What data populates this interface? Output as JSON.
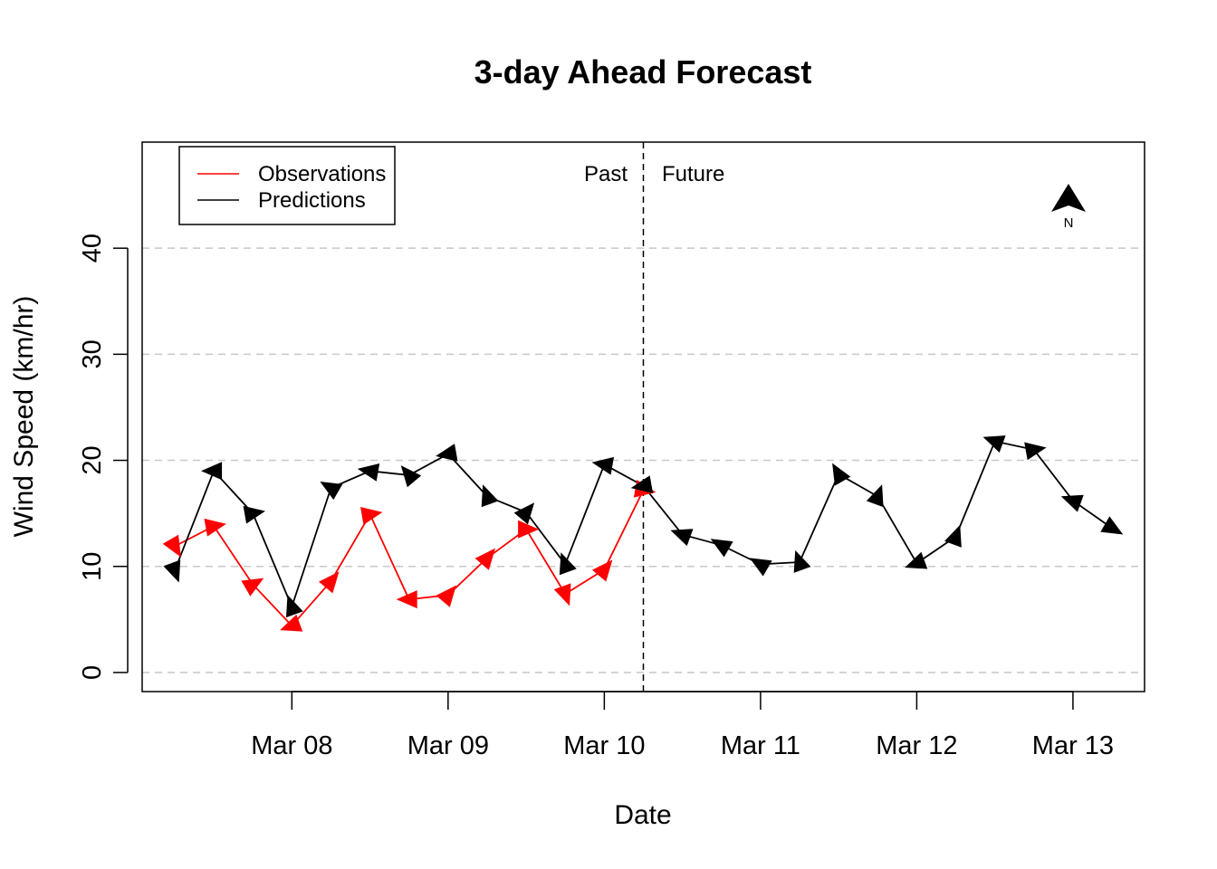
{
  "chart_data": {
    "type": "line",
    "title": "3-day Ahead Forecast",
    "xlabel": "Date",
    "ylabel": "Wind Speed (km/hr)",
    "x_ticks": [
      "Mar 08",
      "Mar 09",
      "Mar 10",
      "Mar 11",
      "Mar 12",
      "Mar 13"
    ],
    "y_ticks": [
      "0",
      "10",
      "20",
      "30",
      "40"
    ],
    "ylim": [
      -1.8,
      50
    ],
    "xlim": [
      "2024-03-07 01:00",
      "2024-03-13 11:00"
    ],
    "grid": "horizontal dashed",
    "legend": {
      "position": "top-left",
      "entries": [
        {
          "label": "Observations",
          "color": "#ff0000"
        },
        {
          "label": "Predictions",
          "color": "#000000"
        }
      ]
    },
    "divider": {
      "x": "2024-03-10 06:00",
      "left_label": "Past",
      "right_label": "Future"
    },
    "north_arrow": "N",
    "series": [
      {
        "name": "Observations",
        "color": "#ff0000",
        "points": [
          {
            "t": "2024-03-07 06:00",
            "y": 11.9,
            "dir": 150
          },
          {
            "t": "2024-03-07 12:00",
            "y": 13.8,
            "dir": 80
          },
          {
            "t": "2024-03-07 18:00",
            "y": 8.3,
            "dir": 60
          },
          {
            "t": "2024-03-08 00:00",
            "y": 4.4,
            "dir": 250
          },
          {
            "t": "2024-03-08 06:00",
            "y": 8.6,
            "dir": 40
          },
          {
            "t": "2024-03-08 12:00",
            "y": 14.9,
            "dir": 80
          },
          {
            "t": "2024-03-08 18:00",
            "y": 6.9,
            "dir": 270
          },
          {
            "t": "2024-03-09 00:00",
            "y": 7.3,
            "dir": 40
          },
          {
            "t": "2024-03-09 06:00",
            "y": 10.8,
            "dir": 40
          },
          {
            "t": "2024-03-09 12:00",
            "y": 13.5,
            "dir": 90
          },
          {
            "t": "2024-03-09 18:00",
            "y": 7.4,
            "dir": 160
          },
          {
            "t": "2024-03-10 00:00",
            "y": 9.7,
            "dir": 40
          },
          {
            "t": "2024-03-10 06:00",
            "y": 17.2,
            "dir": 100
          }
        ]
      },
      {
        "name": "Predictions",
        "color": "#000000",
        "points": [
          {
            "t": "2024-03-07 06:00",
            "y": 9.6,
            "dir": 160
          },
          {
            "t": "2024-03-07 12:00",
            "y": 19.0,
            "dir": 270
          },
          {
            "t": "2024-03-07 18:00",
            "y": 15.0,
            "dir": 80
          },
          {
            "t": "2024-03-08 00:00",
            "y": 6.2,
            "dir": 340
          },
          {
            "t": "2024-03-08 06:00",
            "y": 17.4,
            "dir": 300
          },
          {
            "t": "2024-03-08 12:00",
            "y": 19.0,
            "dir": 280
          },
          {
            "t": "2024-03-08 18:00",
            "y": 18.6,
            "dir": 320
          },
          {
            "t": "2024-03-09 00:00",
            "y": 20.6,
            "dir": 260
          },
          {
            "t": "2024-03-09 06:00",
            "y": 16.6,
            "dir": 340
          },
          {
            "t": "2024-03-09 12:00",
            "y": 15.1,
            "dir": 40
          },
          {
            "t": "2024-03-09 18:00",
            "y": 10.2,
            "dir": 340
          },
          {
            "t": "2024-03-10 00:00",
            "y": 19.6,
            "dir": 280
          },
          {
            "t": "2024-03-10 06:00",
            "y": 17.6,
            "dir": 260
          },
          {
            "t": "2024-03-10 12:00",
            "y": 13.0,
            "dir": 290
          },
          {
            "t": "2024-03-10 18:00",
            "y": 12.0,
            "dir": 300
          },
          {
            "t": "2024-03-11 00:00",
            "y": 10.2,
            "dir": 300
          },
          {
            "t": "2024-03-11 06:00",
            "y": 10.4,
            "dir": 340
          },
          {
            "t": "2024-03-11 12:00",
            "y": 18.7,
            "dir": 330
          },
          {
            "t": "2024-03-11 18:00",
            "y": 16.6,
            "dir": 20
          },
          {
            "t": "2024-03-12 00:00",
            "y": 10.3,
            "dir": 250
          },
          {
            "t": "2024-03-12 06:00",
            "y": 12.8,
            "dir": 20
          },
          {
            "t": "2024-03-12 12:00",
            "y": 21.8,
            "dir": 290
          },
          {
            "t": "2024-03-12 18:00",
            "y": 21.0,
            "dir": 80
          },
          {
            "t": "2024-03-13 00:00",
            "y": 16.2,
            "dir": 290
          },
          {
            "t": "2024-03-13 06:00",
            "y": 13.6,
            "dir": 120
          }
        ]
      }
    ]
  }
}
